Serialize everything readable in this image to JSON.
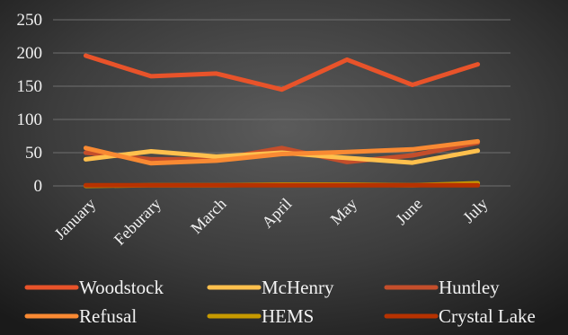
{
  "chart_data": {
    "type": "line",
    "title": "",
    "xlabel": "",
    "ylabel": "",
    "categories": [
      "January",
      "Feburary",
      "March",
      "April",
      "May",
      "June",
      "July"
    ],
    "ylim": [
      0,
      250
    ],
    "yticks": [
      0,
      50,
      100,
      150,
      200,
      250
    ],
    "grid": true,
    "legend_position": "bottom",
    "series": [
      {
        "name": "Woodstock",
        "color": "#E8532A",
        "values": [
          196,
          165,
          169,
          145,
          190,
          152,
          183
        ]
      },
      {
        "name": "McHenry",
        "color": "#FFC04D",
        "values": [
          40,
          52,
          44,
          50,
          42,
          35,
          53
        ]
      },
      {
        "name": "Huntley",
        "color": "#C44E2B",
        "values": [
          50,
          40,
          40,
          57,
          36,
          46,
          65
        ]
      },
      {
        "name": "Refusal",
        "color": "#F98A33",
        "values": [
          57,
          34,
          38,
          48,
          51,
          55,
          67
        ]
      },
      {
        "name": "HEMS",
        "color": "#C79A00",
        "values": [
          0,
          1,
          1,
          2,
          2,
          1,
          4
        ]
      },
      {
        "name": "Crystal Lake",
        "color": "#B73200",
        "values": [
          1,
          1,
          1,
          1,
          1,
          1,
          1
        ]
      }
    ]
  }
}
